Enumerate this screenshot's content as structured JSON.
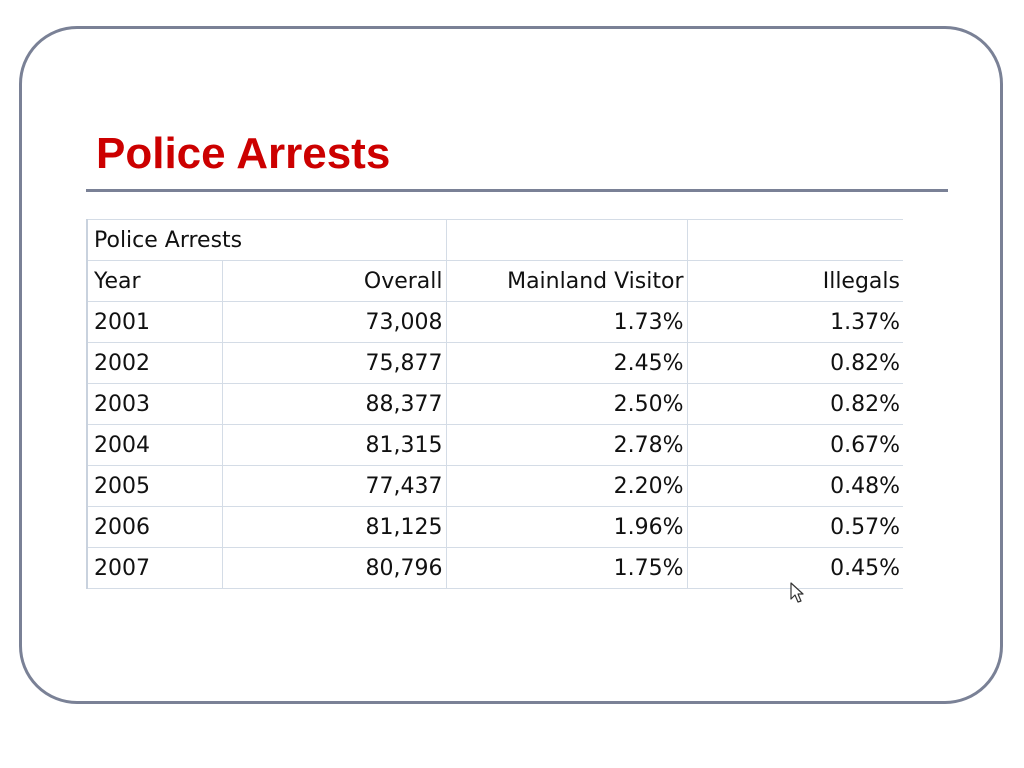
{
  "slide": {
    "title": "Police Arrests"
  },
  "table": {
    "caption": "Police Arrests",
    "headers": [
      "Year",
      "Overall",
      "Mainland Visitor",
      "Illegals"
    ],
    "rows": [
      [
        "2001",
        "73,008",
        "1.73%",
        "1.37%"
      ],
      [
        "2002",
        "75,877",
        "2.45%",
        "0.82%"
      ],
      [
        "2003",
        "88,377",
        "2.50%",
        "0.82%"
      ],
      [
        "2004",
        "81,315",
        "2.78%",
        "0.67%"
      ],
      [
        "2005",
        "77,437",
        "2.20%",
        "0.48%"
      ],
      [
        "2006",
        "81,125",
        "1.96%",
        "0.57%"
      ],
      [
        "2007",
        "80,796",
        "1.75%",
        "0.45%"
      ]
    ]
  },
  "colors": {
    "title": "#cc0000",
    "frame": "#7a8196",
    "gridline": "#d4dce6"
  },
  "icons": {
    "cursor": "mouse-pointer-icon"
  }
}
